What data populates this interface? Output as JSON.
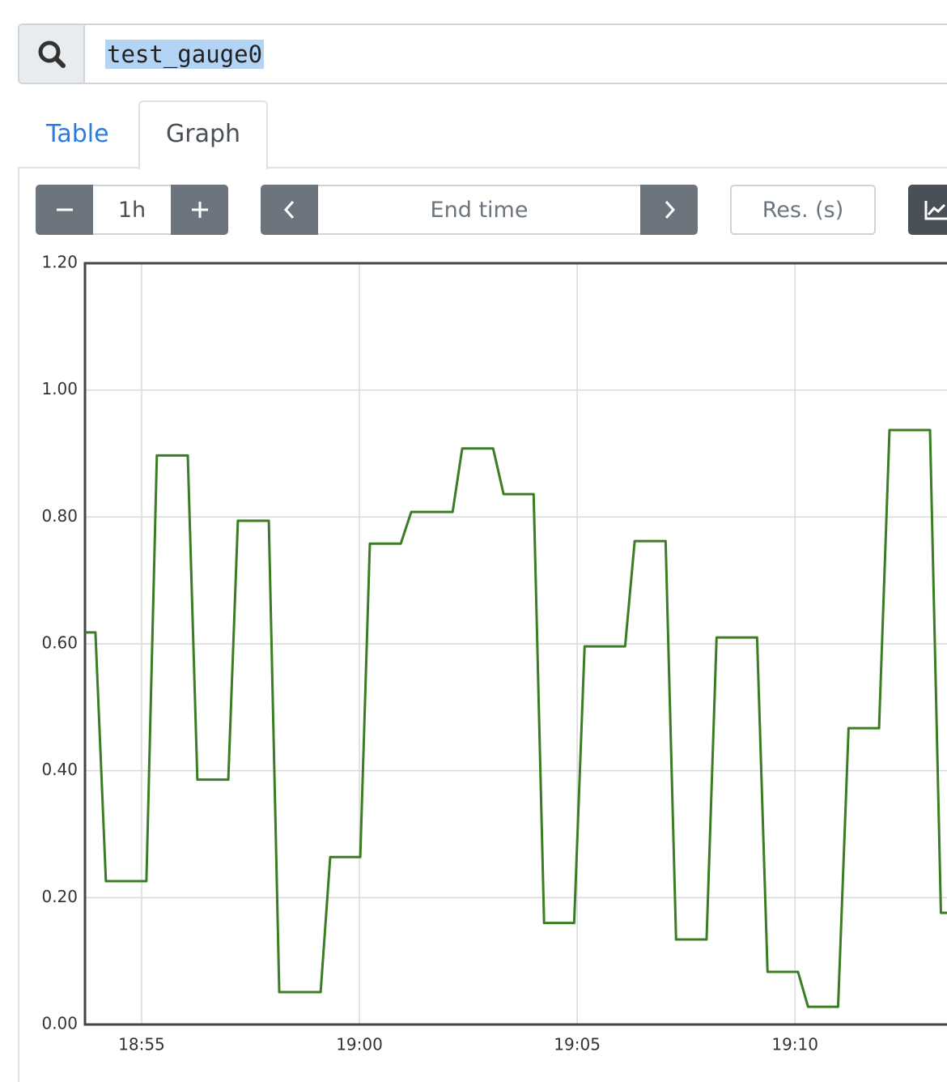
{
  "search": {
    "query": "test_gauge0"
  },
  "tabs": [
    "Table",
    "Graph"
  ],
  "controls": {
    "range": "1h",
    "end_time": "End time",
    "resolution": "Res. (s)"
  },
  "chart_data": {
    "type": "line",
    "x": [
      1133.7,
      1133.94,
      1134.18,
      1135.11,
      1135.35,
      1136.06,
      1136.28,
      1136.99,
      1137.21,
      1137.92,
      1138.16,
      1139.11,
      1139.33,
      1140.02,
      1140.24,
      1140.95,
      1141.19,
      1142.14,
      1142.36,
      1143.07,
      1143.31,
      1144.0,
      1144.24,
      1144.93,
      1145.17,
      1146.1,
      1146.32,
      1147.03,
      1147.27,
      1147.97,
      1148.2,
      1149.13,
      1149.37,
      1150.07,
      1150.3,
      1150.99,
      1151.23,
      1151.93,
      1152.17,
      1153.1,
      1153.35,
      1153.49
    ],
    "series": [
      {
        "color": "#3b7d23",
        "values": [
          0.618,
          0.618,
          0.226,
          0.226,
          0.897,
          0.897,
          0.386,
          0.386,
          0.794,
          0.794,
          0.051,
          0.051,
          0.264,
          0.264,
          0.758,
          0.758,
          0.808,
          0.808,
          0.908,
          0.908,
          0.836,
          0.836,
          0.16,
          0.16,
          0.596,
          0.596,
          0.762,
          0.762,
          0.134,
          0.134,
          0.61,
          0.61,
          0.083,
          0.083,
          0.028,
          0.028,
          0.467,
          0.467,
          0.937,
          0.937,
          0.176,
          0.176
        ]
      }
    ],
    "xlim": [
      1133.7,
      1153.49
    ],
    "ylim": [
      0,
      1.2
    ],
    "xticks": [
      {
        "value": 1135,
        "label": "18:55"
      },
      {
        "value": 1140,
        "label": "19:00"
      },
      {
        "value": 1145,
        "label": "19:05"
      },
      {
        "value": 1150,
        "label": "19:10"
      }
    ],
    "yticks": [
      {
        "value": 0,
        "label": "0.00"
      },
      {
        "value": 0.2,
        "label": "0.20"
      },
      {
        "value": 0.4,
        "label": "0.40"
      },
      {
        "value": 0.6,
        "label": "0.60"
      },
      {
        "value": 0.8,
        "label": "0.80"
      },
      {
        "value": 1,
        "label": "1.00"
      },
      {
        "value": 1.2,
        "label": "1.20"
      }
    ],
    "grid": true
  }
}
